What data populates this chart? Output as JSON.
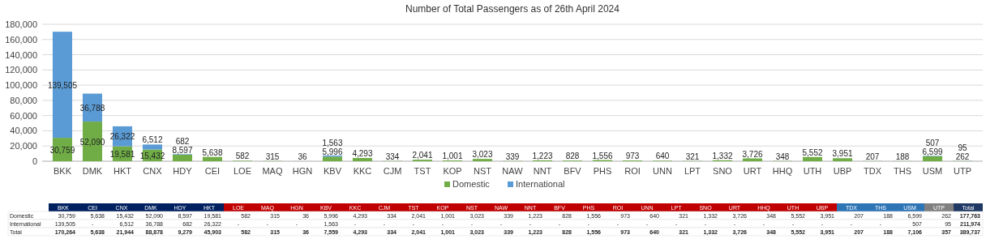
{
  "chart_data": [
    {
      "type": "bar",
      "title": "Number of Total Passengers as of 26th April 2024",
      "categories": [
        "BKK",
        "DMK",
        "HKT",
        "CNX",
        "HDY",
        "CEI",
        "LOE",
        "MAQ",
        "HGN",
        "KBV",
        "KKC",
        "CJM",
        "TST",
        "KOP",
        "NST",
        "NAW",
        "NNT",
        "BFV",
        "PHS",
        "ROI",
        "UNN",
        "LPT",
        "SNO",
        "URT",
        "HHQ",
        "UTH",
        "UBP",
        "TDX",
        "THS",
        "USM",
        "UTP"
      ],
      "series": [
        {
          "name": "Domestic",
          "color": "#70ad47",
          "values": [
            30759,
            52090,
            19581,
            15432,
            8597,
            5638,
            582,
            315,
            36,
            5996,
            4293,
            334,
            2041,
            1001,
            3023,
            339,
            1223,
            828,
            1556,
            973,
            640,
            321,
            1332,
            3726,
            348,
            5552,
            3951,
            207,
            188,
            6599,
            262
          ],
          "value_labels": [
            "30,759",
            "52,090",
            "19,581",
            "15,432",
            "8,597",
            "5,638",
            "582",
            "315",
            "36",
            "5,996",
            "4,293",
            "334",
            "2,041",
            "1,001",
            "3,023",
            "339",
            "1,223",
            "828",
            "1,556",
            "973",
            "640",
            "321",
            "1,332",
            "3,726",
            "348",
            "5,552",
            "3,951",
            "207",
            "188",
            "6,599",
            "262"
          ]
        },
        {
          "name": "International",
          "color": "#5b9bd5",
          "values": [
            139505,
            36788,
            26322,
            6512,
            682,
            null,
            null,
            null,
            null,
            1563,
            null,
            null,
            null,
            null,
            null,
            null,
            null,
            null,
            null,
            null,
            null,
            null,
            null,
            null,
            null,
            null,
            null,
            null,
            null,
            507,
            95
          ],
          "value_labels": [
            "139,505",
            "36,788",
            "26,322",
            "6,512",
            "682",
            null,
            null,
            null,
            null,
            "1,563",
            null,
            null,
            null,
            null,
            null,
            null,
            null,
            null,
            null,
            null,
            null,
            null,
            null,
            null,
            null,
            null,
            null,
            null,
            null,
            "507",
            "95"
          ]
        }
      ],
      "stacked": true,
      "ylim": [
        0,
        180000
      ],
      "yticks": [
        0,
        {
          "value": 20000,
          "label": "20,000"
        },
        {
          "value": 40000,
          "label": "40,000"
        },
        {
          "value": 60000,
          "label": "60,000"
        },
        {
          "value": 80000,
          "label": "80,000"
        },
        {
          "value": 100000,
          "label": "100,000"
        },
        {
          "value": 120000,
          "label": "120,000"
        },
        {
          "value": 140000,
          "label": "140,000"
        },
        {
          "value": 160000,
          "label": "160,000"
        },
        {
          "value": 180000,
          "label": "180,000"
        }
      ],
      "grid": "y",
      "legend": "bottom"
    },
    {
      "type": "heatmap",
      "categories": [
        "BKK",
        "CEI",
        "CNX",
        "DMK",
        "HDY",
        "HKT",
        "LOE",
        "MAQ",
        "HGN",
        "KBV",
        "KKC",
        "CJM",
        "TST",
        "KOP",
        "NST",
        "NAW",
        "NNT",
        "BFV",
        "PHS",
        "ROI",
        "UNN",
        "LPT",
        "SNO",
        "URT",
        "HHQ",
        "UTH",
        "UBP",
        "TDX",
        "THS",
        "USM",
        "UTP",
        "Total"
      ],
      "colors": [
        "#002060",
        "#002060",
        "#002060",
        "#002060",
        "#002060",
        "#002060",
        "#c00000",
        "#c00000",
        "#c00000",
        "#c00000",
        "#c00000",
        "#c00000",
        "#c00000",
        "#c00000",
        "#c00000",
        "#c00000",
        "#c00000",
        "#c00000",
        "#c00000",
        "#c00000",
        "#c00000",
        "#c00000",
        "#c00000",
        "#c00000",
        "#c00000",
        "#c00000",
        "#c00000",
        "#2e75b6",
        "#2e75b6",
        "#2e75b6",
        "#808080",
        "#1f3864"
      ],
      "y_categories": [
        "Domestic",
        "International",
        "Total"
      ],
      "cells": [
        [
          null,
          null,
          null,
          null,
          null,
          null,
          null,
          null,
          null,
          null,
          null,
          null,
          null,
          null,
          null,
          null,
          null,
          null,
          null,
          null,
          null,
          null,
          null,
          null,
          null,
          null,
          null,
          null,
          null,
          null,
          null,
          null
        ],
        [
          null,
          null,
          null,
          null,
          null,
          null,
          null,
          null,
          null,
          null,
          null,
          null,
          null,
          null,
          null,
          null,
          null,
          null,
          null,
          null,
          null,
          null,
          null,
          null,
          null,
          null,
          null,
          null,
          null,
          null,
          null,
          null
        ],
        [
          null,
          null,
          null,
          null,
          null,
          null,
          null,
          null,
          null,
          null,
          null,
          null,
          null,
          null,
          null,
          null,
          null,
          null,
          null,
          null,
          null,
          null,
          null,
          null,
          null,
          null,
          null,
          null,
          null,
          null,
          null,
          null
        ]
      ],
      "cell_labels": [
        [
          "30,759",
          "5,638",
          "15,432",
          "52,090",
          "8,597",
          "19,581",
          "582",
          "315",
          "36",
          "5,996",
          "4,293",
          "334",
          "2,041",
          "1,001",
          "3,023",
          "339",
          "1,223",
          "828",
          "1,556",
          "973",
          "640",
          "321",
          "1,332",
          "3,726",
          "348",
          "5,552",
          "3,951",
          "207",
          "188",
          "6,599",
          "262",
          "177,763"
        ],
        [
          "139,505",
          "-",
          "6,512",
          "36,788",
          "682",
          "26,322",
          "-",
          "-",
          "-",
          "1,563",
          "-",
          "-",
          "-",
          "-",
          "-",
          "-",
          "-",
          "-",
          "-",
          "-",
          "-",
          "-",
          "-",
          "-",
          "-",
          "-",
          "-",
          "-",
          "-",
          "507",
          "95",
          "211,974"
        ],
        [
          "170,264",
          "5,638",
          "21,944",
          "88,878",
          "9,279",
          "45,903",
          "582",
          "315",
          "36",
          "7,559",
          "4,293",
          "334",
          "2,041",
          "1,001",
          "3,023",
          "339",
          "1,223",
          "828",
          "1,556",
          "973",
          "640",
          "321",
          "1,332",
          "3,726",
          "348",
          "5,552",
          "3,951",
          "207",
          "188",
          "7,106",
          "357",
          "389,737"
        ]
      ]
    }
  ]
}
